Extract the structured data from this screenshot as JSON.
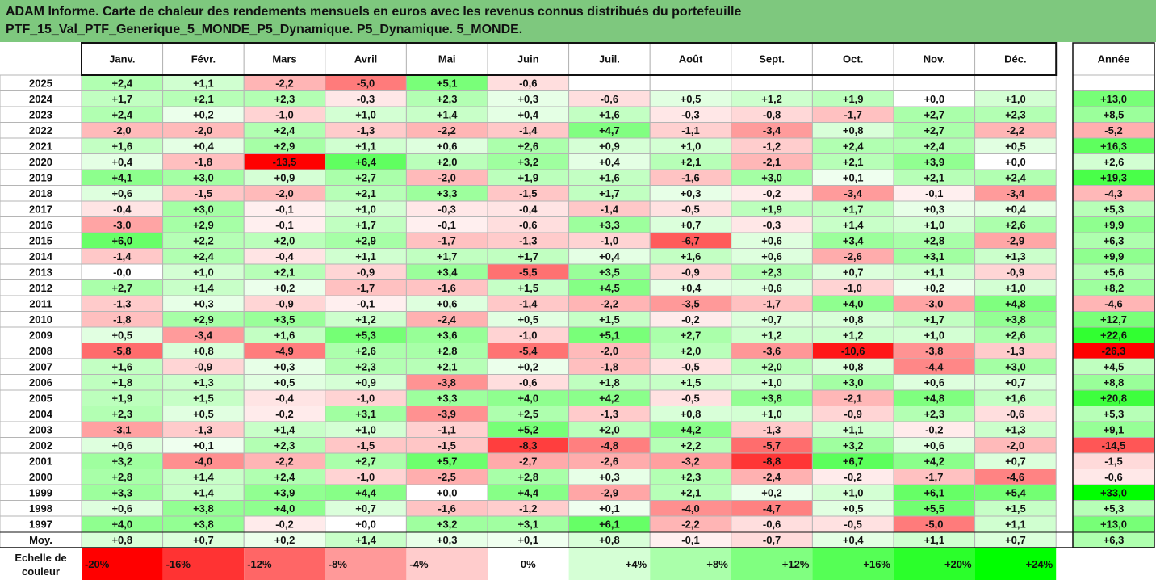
{
  "title": {
    "line1": "ADAM Informe. Carte de chaleur des rendements mensuels en euros avec les revenus connus distribués du portefeuille",
    "line2": "PTF_15_Val_PTF_Generique_5_MONDE_P5_Dynamique. P5_Dynamique. 5_MONDE."
  },
  "colors": {
    "title_bg": "#7ec87e",
    "grid_border": "#b5b5b5",
    "strong_border": "#111111",
    "negative_max": "#ff0000",
    "positive_max": "#00ff00",
    "neutral": "#ffffff"
  },
  "chart_data": {
    "type": "heatmap",
    "columns": [
      "Janv.",
      "Févr.",
      "Mars",
      "Avril",
      "Mai",
      "Juin",
      "Juil.",
      "Août",
      "Sept.",
      "Oct.",
      "Nov.",
      "Déc."
    ],
    "year_column": "Année",
    "rows": [
      {
        "year": "2025",
        "months": [
          "+2,4",
          "+1,1",
          "-2,2",
          "-5,0",
          "+5,1",
          "-0,6",
          "",
          "",
          "",
          "",
          "",
          ""
        ],
        "annual": ""
      },
      {
        "year": "2024",
        "months": [
          "+1,7",
          "+2,1",
          "+2,3",
          "-0,3",
          "+2,3",
          "+0,3",
          "-0,6",
          "+0,5",
          "+1,2",
          "+1,9",
          "+0,0",
          "+1,0"
        ],
        "annual": "+13,0"
      },
      {
        "year": "2023",
        "months": [
          "+2,4",
          "+0,2",
          "-1,0",
          "+1,0",
          "+1,4",
          "+0,4",
          "+1,6",
          "-0,3",
          "-0,8",
          "-1,7",
          "+2,7",
          "+2,3"
        ],
        "annual": "+8,5"
      },
      {
        "year": "2022",
        "months": [
          "-2,0",
          "-2,0",
          "+2,4",
          "-1,3",
          "-2,2",
          "-1,4",
          "+4,7",
          "-1,1",
          "-3,4",
          "+0,8",
          "+2,7",
          "-2,2"
        ],
        "annual": "-5,2"
      },
      {
        "year": "2021",
        "months": [
          "+1,6",
          "+0,4",
          "+2,9",
          "+1,1",
          "+0,6",
          "+2,6",
          "+0,9",
          "+1,0",
          "-1,2",
          "+2,4",
          "+2,4",
          "+0,5"
        ],
        "annual": "+16,3"
      },
      {
        "year": "2020",
        "months": [
          "+0,4",
          "-1,8",
          "-13,5",
          "+6,4",
          "+2,0",
          "+3,2",
          "+0,4",
          "+2,1",
          "-2,1",
          "+2,1",
          "+3,9",
          "+0,0"
        ],
        "annual": "+2,6"
      },
      {
        "year": "2019",
        "months": [
          "+4,1",
          "+3,0",
          "+0,9",
          "+2,7",
          "-2,0",
          "+1,9",
          "+1,6",
          "-1,6",
          "+3,0",
          "+0,1",
          "+2,1",
          "+2,4"
        ],
        "annual": "+19,3"
      },
      {
        "year": "2018",
        "months": [
          "+0,6",
          "-1,5",
          "-2,0",
          "+2,1",
          "+3,3",
          "-1,5",
          "+1,7",
          "+0,3",
          "-0,2",
          "-3,4",
          "-0,1",
          "-3,4"
        ],
        "annual": "-4,3"
      },
      {
        "year": "2017",
        "months": [
          "-0,4",
          "+3,0",
          "-0,1",
          "+1,0",
          "-0,3",
          "-0,4",
          "-1,4",
          "-0,5",
          "+1,9",
          "+1,7",
          "+0,3",
          "+0,4"
        ],
        "annual": "+5,3"
      },
      {
        "year": "2016",
        "months": [
          "-3,0",
          "+2,9",
          "-0,1",
          "+1,7",
          "-0,1",
          "-0,6",
          "+3,3",
          "+0,7",
          "-0,3",
          "+1,4",
          "+1,0",
          "+2,6"
        ],
        "annual": "+9,9"
      },
      {
        "year": "2015",
        "months": [
          "+6,0",
          "+2,2",
          "+2,0",
          "+2,9",
          "-1,7",
          "-1,3",
          "-1,0",
          "-6,7",
          "+0,6",
          "+3,4",
          "+2,8",
          "-2,9"
        ],
        "annual": "+6,3"
      },
      {
        "year": "2014",
        "months": [
          "-1,4",
          "+2,4",
          "-0,4",
          "+1,1",
          "+1,7",
          "+1,7",
          "+0,4",
          "+1,6",
          "+0,6",
          "-2,6",
          "+3,1",
          "+1,3"
        ],
        "annual": "+9,9"
      },
      {
        "year": "2013",
        "months": [
          "-0,0",
          "+1,0",
          "+2,1",
          "-0,9",
          "+3,4",
          "-5,5",
          "+3,5",
          "-0,9",
          "+2,3",
          "+0,7",
          "+1,1",
          "-0,9"
        ],
        "annual": "+5,6"
      },
      {
        "year": "2012",
        "months": [
          "+2,7",
          "+1,4",
          "+0,2",
          "-1,7",
          "-1,6",
          "+1,5",
          "+4,5",
          "+0,4",
          "+0,6",
          "-1,0",
          "+0,2",
          "+1,0"
        ],
        "annual": "+8,2"
      },
      {
        "year": "2011",
        "months": [
          "-1,3",
          "+0,3",
          "-0,9",
          "-0,1",
          "+0,6",
          "-1,4",
          "-2,2",
          "-3,5",
          "-1,7",
          "+4,0",
          "-3,0",
          "+4,8"
        ],
        "annual": "-4,6"
      },
      {
        "year": "2010",
        "months": [
          "-1,8",
          "+2,9",
          "+3,5",
          "+1,2",
          "-2,4",
          "+0,5",
          "+1,5",
          "-0,2",
          "+0,7",
          "+0,8",
          "+1,7",
          "+3,8"
        ],
        "annual": "+12,7"
      },
      {
        "year": "2009",
        "months": [
          "+0,5",
          "-3,4",
          "+1,6",
          "+5,3",
          "+3,6",
          "-1,0",
          "+5,1",
          "+2,7",
          "+1,2",
          "+1,2",
          "+1,0",
          "+2,6"
        ],
        "annual": "+22,6"
      },
      {
        "year": "2008",
        "months": [
          "-5,8",
          "+0,8",
          "-4,9",
          "+2,6",
          "+2,8",
          "-5,4",
          "-2,0",
          "+2,0",
          "-3,6",
          "-10,6",
          "-3,8",
          "-1,3"
        ],
        "annual": "-26,3"
      },
      {
        "year": "2007",
        "months": [
          "+1,6",
          "-0,9",
          "+0,3",
          "+2,3",
          "+2,1",
          "+0,2",
          "-1,8",
          "-0,5",
          "+2,0",
          "+0,8",
          "-4,4",
          "+3,0"
        ],
        "annual": "+4,5"
      },
      {
        "year": "2006",
        "months": [
          "+1,8",
          "+1,3",
          "+0,5",
          "+0,9",
          "-3,8",
          "-0,6",
          "+1,8",
          "+1,5",
          "+1,0",
          "+3,0",
          "+0,6",
          "+0,7"
        ],
        "annual": "+8,8"
      },
      {
        "year": "2005",
        "months": [
          "+1,9",
          "+1,5",
          "-0,4",
          "-1,0",
          "+3,3",
          "+4,0",
          "+4,2",
          "-0,5",
          "+3,8",
          "-2,1",
          "+4,8",
          "+1,6"
        ],
        "annual": "+20,8"
      },
      {
        "year": "2004",
        "months": [
          "+2,3",
          "+0,5",
          "-0,2",
          "+3,1",
          "-3,9",
          "+2,5",
          "-1,3",
          "+0,8",
          "+1,0",
          "-0,9",
          "+2,3",
          "-0,6"
        ],
        "annual": "+5,3"
      },
      {
        "year": "2003",
        "months": [
          "-3,1",
          "-1,3",
          "+1,4",
          "+1,0",
          "-1,1",
          "+5,2",
          "+2,0",
          "+4,2",
          "-1,3",
          "+1,1",
          "-0,2",
          "+1,3"
        ],
        "annual": "+9,1"
      },
      {
        "year": "2002",
        "months": [
          "+0,6",
          "+0,1",
          "+2,3",
          "-1,5",
          "-1,5",
          "-8,3",
          "-4,8",
          "+2,2",
          "-5,7",
          "+3,2",
          "+0,6",
          "-2,0"
        ],
        "annual": "-14,5"
      },
      {
        "year": "2001",
        "months": [
          "+3,2",
          "-4,0",
          "-2,2",
          "+2,7",
          "+5,7",
          "-2,7",
          "-2,6",
          "-3,2",
          "-8,8",
          "+6,7",
          "+4,2",
          "+0,7"
        ],
        "annual": "-1,5"
      },
      {
        "year": "2000",
        "months": [
          "+2,8",
          "+1,4",
          "+2,4",
          "-1,0",
          "-2,5",
          "+2,8",
          "+0,3",
          "+2,3",
          "-2,4",
          "-0,2",
          "-1,7",
          "-4,6"
        ],
        "annual": "-0,6"
      },
      {
        "year": "1999",
        "months": [
          "+3,3",
          "+1,4",
          "+3,9",
          "+4,4",
          "+0,0",
          "+4,4",
          "-2,9",
          "+2,1",
          "+0,2",
          "+1,0",
          "+6,1",
          "+5,4"
        ],
        "annual": "+33,0"
      },
      {
        "year": "1998",
        "months": [
          "+0,6",
          "+3,8",
          "+4,0",
          "+0,7",
          "-1,6",
          "-1,2",
          "+0,1",
          "-4,0",
          "-4,7",
          "+0,5",
          "+5,5",
          "+1,5"
        ],
        "annual": "+5,3"
      },
      {
        "year": "1997",
        "months": [
          "+4,0",
          "+3,8",
          "-0,2",
          "+0,0",
          "+3,2",
          "+3,1",
          "+6,1",
          "-2,2",
          "-0,6",
          "-0,5",
          "-5,0",
          "+1,1"
        ],
        "annual": "+13,0"
      }
    ],
    "average": {
      "label": "Moy.",
      "months": [
        "+0,8",
        "+0,7",
        "+0,2",
        "+1,4",
        "+0,3",
        "+0,1",
        "+0,8",
        "-0,1",
        "-0,7",
        "+0,4",
        "+1,1",
        "+0,7"
      ],
      "annual": "+6,3"
    },
    "color_scale": {
      "label_line1": "Echelle de",
      "label_line2": "couleur",
      "labels": [
        "-20%",
        "-16%",
        "-12%",
        "-8%",
        "-4%",
        "0%",
        "+4%",
        "+8%",
        "+12%",
        "+16%",
        "+20%",
        "+24%"
      ],
      "values": [
        -20,
        -16,
        -12,
        -8,
        -4,
        0,
        4,
        8,
        12,
        16,
        20,
        24
      ]
    },
    "month_color_range": [
      -12,
      12
    ],
    "annual_color_range": [
      -25,
      30
    ]
  }
}
